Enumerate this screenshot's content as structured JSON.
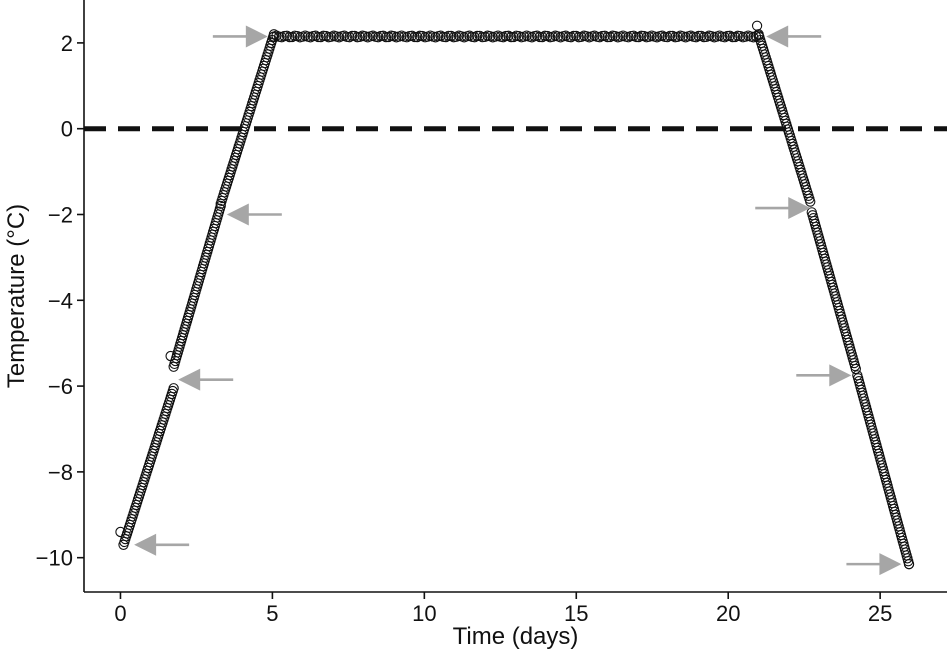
{
  "chart_data": {
    "type": "scatter",
    "title": "",
    "xlabel": "Time (days)",
    "ylabel": "Temperature (°C)",
    "xlim": [
      -1.2,
      27.2
    ],
    "ylim": [
      -10.8,
      3.0
    ],
    "x_ticks": [
      0,
      5,
      10,
      15,
      20,
      25
    ],
    "x_tick_labels": [
      "0",
      "5",
      "10",
      "15",
      "20",
      "25"
    ],
    "y_ticks": [
      -10,
      -8,
      -6,
      -4,
      -2,
      0,
      2
    ],
    "y_tick_labels": [
      "−10",
      "−8",
      "−6",
      "−4",
      "−2",
      "0",
      "2"
    ],
    "grid": false,
    "reference_line": {
      "y": 0,
      "style": "dashed",
      "color": "#111111"
    },
    "marker": {
      "shape": "open-circle",
      "color": "#111111"
    },
    "arrow_color": "#a6a6a6",
    "segments": [
      {
        "phase": "warming",
        "from": [
          0.1,
          -9.7
        ],
        "to": [
          1.75,
          -6.05
        ]
      },
      {
        "phase": "warming",
        "from": [
          1.75,
          -5.55
        ],
        "to": [
          3.3,
          -1.8
        ]
      },
      {
        "phase": "warming",
        "from": [
          3.3,
          -1.75
        ],
        "to": [
          5.05,
          2.2
        ]
      },
      {
        "phase": "hold",
        "from": [
          5.05,
          2.15
        ],
        "to": [
          21.0,
          2.15
        ]
      },
      {
        "phase": "cooling",
        "from": [
          21.0,
          2.2
        ],
        "to": [
          22.7,
          -1.7
        ]
      },
      {
        "phase": "cooling",
        "from": [
          22.75,
          -1.95
        ],
        "to": [
          24.2,
          -5.6
        ]
      },
      {
        "phase": "cooling",
        "from": [
          24.25,
          -5.75
        ],
        "to": [
          25.95,
          -10.15
        ]
      }
    ],
    "extra_points": [
      {
        "x": 0.0,
        "y": -9.4
      },
      {
        "x": 1.65,
        "y": -5.3
      },
      {
        "x": 20.95,
        "y": 2.4
      },
      {
        "x": 25.95,
        "y": -10.15
      }
    ],
    "arrows": [
      {
        "x": 0.45,
        "y": -9.7,
        "direction": "left"
      },
      {
        "x": 1.9,
        "y": -5.85,
        "direction": "left"
      },
      {
        "x": 3.5,
        "y": -2.0,
        "direction": "left"
      },
      {
        "x": 4.85,
        "y": 2.15,
        "direction": "right"
      },
      {
        "x": 21.25,
        "y": 2.15,
        "direction": "left"
      },
      {
        "x": 22.7,
        "y": -1.85,
        "direction": "right"
      },
      {
        "x": 24.05,
        "y": -5.75,
        "direction": "right"
      },
      {
        "x": 25.7,
        "y": -10.15,
        "direction": "right"
      }
    ]
  }
}
